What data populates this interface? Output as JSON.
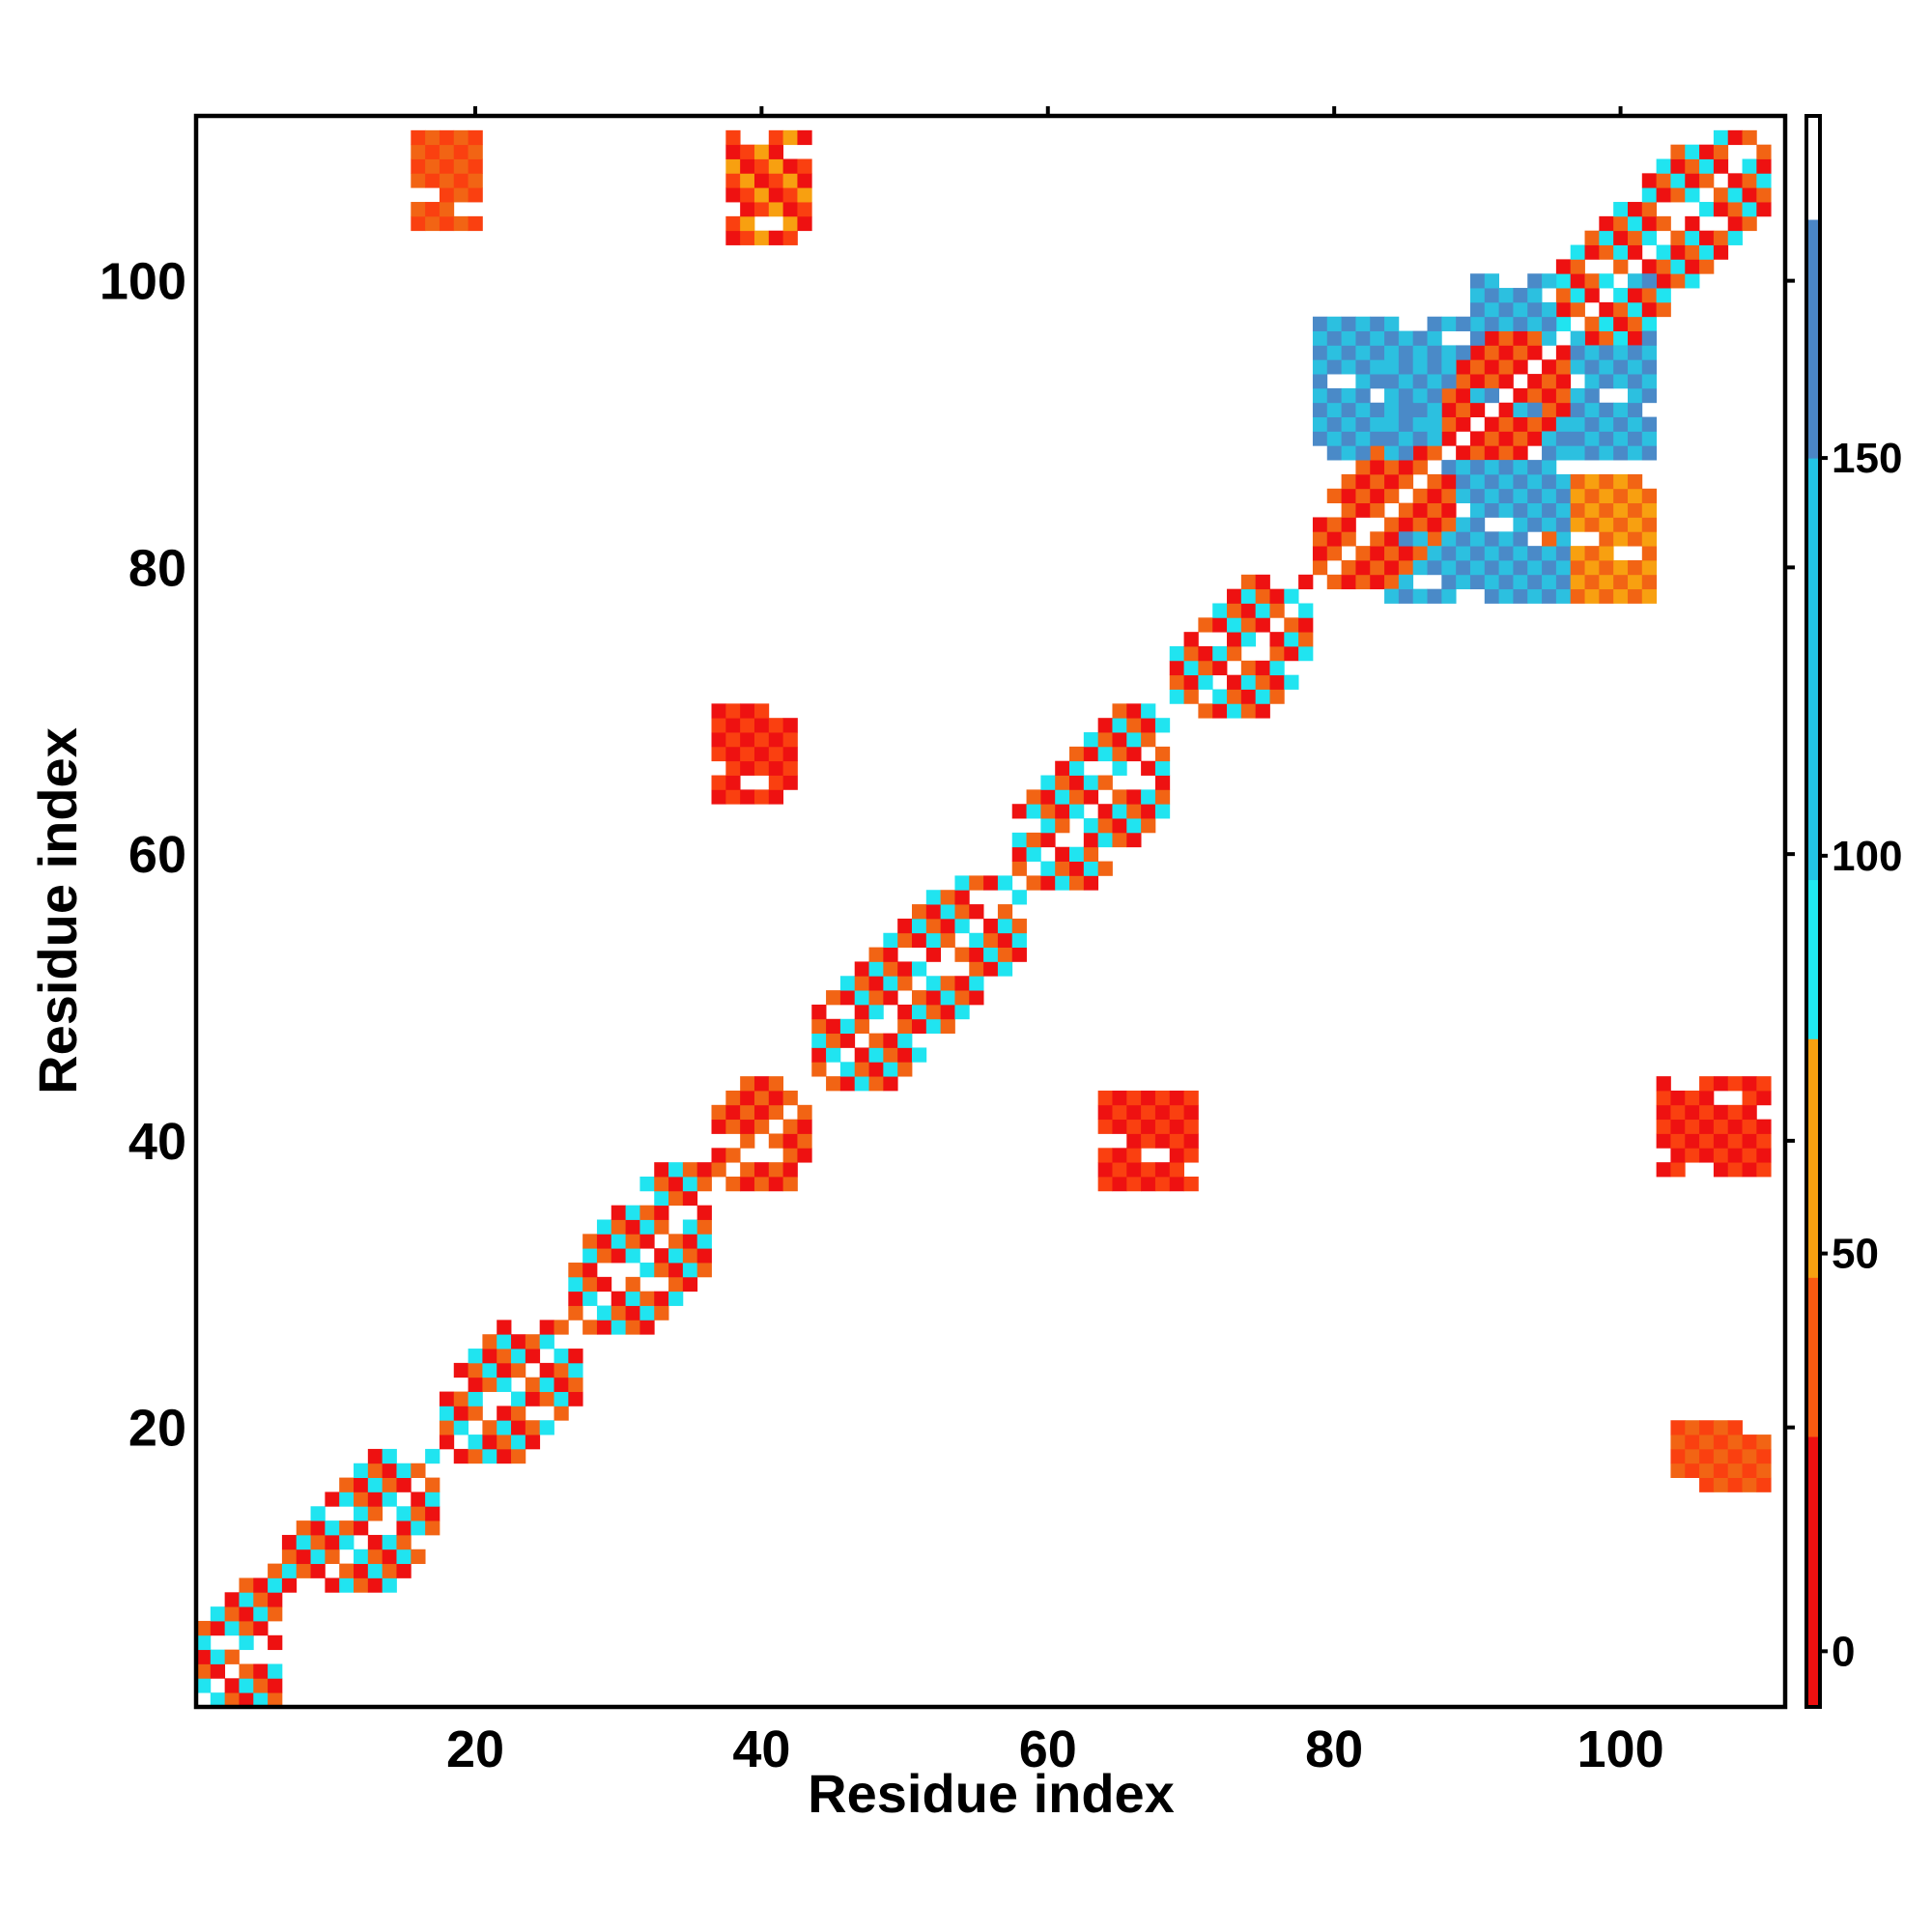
{
  "chart_data": {
    "type": "heatmap",
    "title": "",
    "xlabel": "Residue index",
    "ylabel": "Residue index",
    "xlim": [
      1,
      111
    ],
    "ylim": [
      1,
      111
    ],
    "x_ticks": [
      20,
      40,
      60,
      80,
      100
    ],
    "y_ticks": [
      20,
      40,
      60,
      80,
      100
    ],
    "colorbar": {
      "ticks": [
        0,
        50,
        100,
        150
      ],
      "range": [
        -7,
        193
      ],
      "bands": [
        {
          "from": -7,
          "to": 27,
          "color": "#ee1010"
        },
        {
          "from": 27,
          "to": 47,
          "color": "#fa5a10"
        },
        {
          "from": 47,
          "to": 77,
          "color": "#f8a010"
        },
        {
          "from": 77,
          "to": 97,
          "color": "#20e8f0"
        },
        {
          "from": 97,
          "to": 150,
          "color": "#22c4e4"
        },
        {
          "from": 150,
          "to": 180,
          "color": "#4a86c6"
        },
        {
          "from": 180,
          "to": 193,
          "color": "#ffffff"
        }
      ]
    },
    "palette": {
      "red": "#ee1111",
      "redorange": "#fa4010",
      "orange": "#f26414",
      "amber": "#f8a010",
      "cyan": "#20e4f0",
      "skyblue": "#2cc0e0",
      "blue": "#4a8ac8"
    },
    "contacts": [
      {
        "x": [
          1,
          6
        ],
        "y": [
          1,
          10
        ],
        "mix": [
          "cyan",
          "orange",
          "red"
        ],
        "note": "diagonal band"
      },
      {
        "x": [
          7,
          17
        ],
        "y": [
          9,
          18
        ],
        "mix": [
          "cyan",
          "orange",
          "red"
        ]
      },
      {
        "x": [
          18,
          27
        ],
        "y": [
          18,
          27
        ],
        "mix": [
          "red",
          "orange",
          "cyan"
        ]
      },
      {
        "x": [
          27,
          36
        ],
        "y": [
          27,
          38
        ],
        "mix": [
          "cyan",
          "orange",
          "red"
        ]
      },
      {
        "x": [
          37,
          43
        ],
        "y": [
          37,
          44
        ],
        "mix": [
          "red",
          "orange"
        ]
      },
      {
        "x": [
          44,
          58
        ],
        "y": [
          44,
          58
        ],
        "mix": [
          "cyan",
          "orange",
          "red"
        ]
      },
      {
        "x": [
          58,
          68
        ],
        "y": [
          58,
          70
        ],
        "mix": [
          "orange",
          "red",
          "cyan"
        ]
      },
      {
        "x": [
          69,
          78
        ],
        "y": [
          70,
          79
        ],
        "mix": [
          "cyan",
          "orange",
          "red"
        ]
      },
      {
        "x": [
          79,
          88
        ],
        "y": [
          79,
          88
        ],
        "mix": [
          "red",
          "orange"
        ]
      },
      {
        "x": [
          88,
          96
        ],
        "y": [
          88,
          96
        ],
        "mix": [
          "red",
          "orange"
        ]
      },
      {
        "x": [
          96,
          110
        ],
        "y": [
          96,
          110
        ],
        "mix": [
          "red",
          "orange",
          "cyan"
        ]
      },
      {
        "x": [
          16,
          20
        ],
        "y": [
          104,
          110
        ],
        "mix": [
          "orange",
          "redorange"
        ],
        "note": "off-diagonal"
      },
      {
        "x": [
          38,
          43
        ],
        "y": [
          103,
          110
        ],
        "mix": [
          "red",
          "redorange",
          "amber"
        ]
      },
      {
        "x": [
          37,
          42
        ],
        "y": [
          64,
          70
        ],
        "mix": [
          "red",
          "redorange"
        ]
      },
      {
        "x": [
          64,
          70
        ],
        "y": [
          37,
          43
        ],
        "mix": [
          "red",
          "redorange"
        ]
      },
      {
        "x": [
          103,
          110
        ],
        "y": [
          38,
          44
        ],
        "mix": [
          "red",
          "redorange"
        ]
      },
      {
        "x": [
          104,
          110
        ],
        "y": [
          16,
          20
        ],
        "mix": [
          "redorange",
          "orange"
        ]
      },
      {
        "x": [
          84,
          96
        ],
        "y": [
          78,
          94
        ],
        "mix": [
          "blue",
          "skyblue"
        ],
        "note": "antiparallel cross"
      },
      {
        "x": [
          90,
          102
        ],
        "y": [
          88,
          100
        ],
        "mix": [
          "blue",
          "skyblue"
        ]
      },
      {
        "x": [
          79,
          89
        ],
        "y": [
          88,
          97
        ],
        "mix": [
          "skyblue",
          "blue"
        ]
      },
      {
        "x": [
          95,
          102
        ],
        "y": [
          78,
          86
        ],
        "mix": [
          "amber",
          "orange"
        ]
      }
    ]
  }
}
